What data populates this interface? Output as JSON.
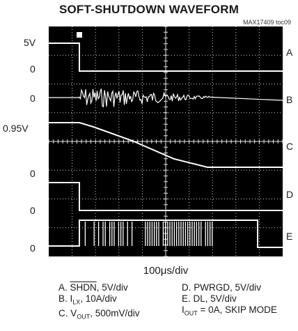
{
  "chart_data": {
    "type": "line",
    "title": "SOFT-SHUTDOWN WAVEFORM",
    "figure_ref": "MAX17409 toc09",
    "xlabel_prefix": "100",
    "xlabel_mu": "μ",
    "xlabel_suffix": "s/div",
    "divisions": {
      "x": 10,
      "y": 8
    },
    "grid": true,
    "left_labels": [
      "5V",
      "0",
      "0",
      "0.95V",
      "0",
      "0",
      "0"
    ],
    "channels": [
      {
        "id": "A",
        "label": "A"
      },
      {
        "id": "B",
        "label": "B"
      },
      {
        "id": "C",
        "label": "C"
      },
      {
        "id": "D",
        "label": "D"
      },
      {
        "id": "E",
        "label": "E"
      }
    ],
    "legend": {
      "a": {
        "prefix": "A. ",
        "overline": "SHDN",
        "suffix": ", 5V/div"
      },
      "b": {
        "prefix": "B. I",
        "sub": "LX",
        "suffix": ", 10A/div"
      },
      "c": {
        "prefix": "C. V",
        "sub": "OUT",
        "suffix": ", 500mV/div"
      },
      "d": {
        "text": "D. PWRGD, 5V/div"
      },
      "e": {
        "text": "E. DL, 5V/div"
      },
      "f": {
        "prefix": "I",
        "sub": "OUT",
        "suffix": " = 0A, SKIP MODE"
      }
    }
  }
}
